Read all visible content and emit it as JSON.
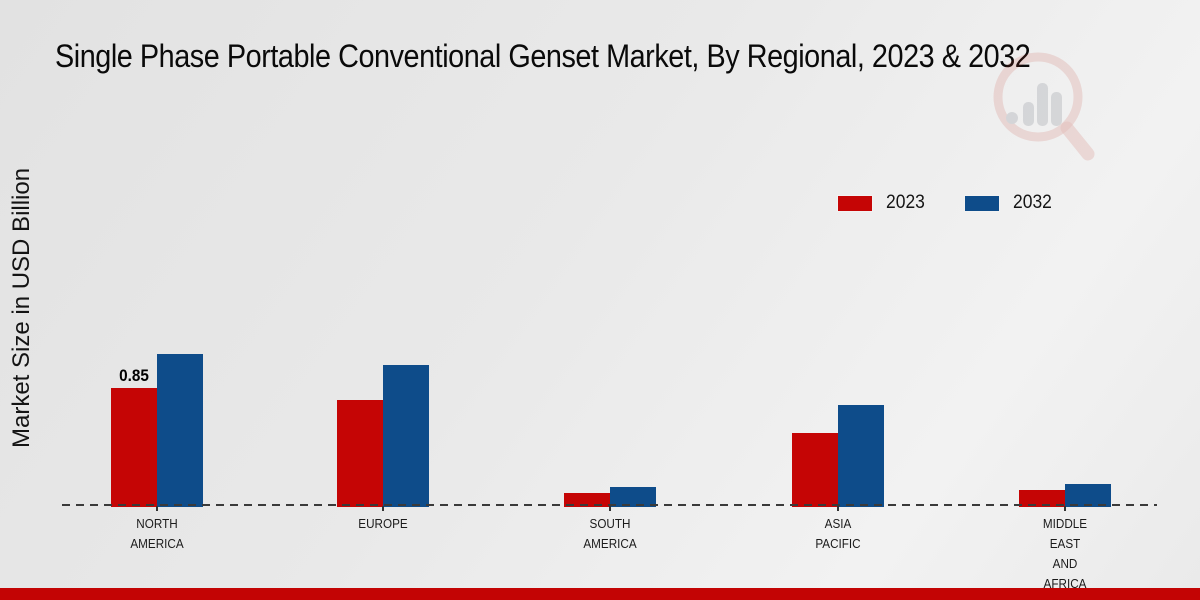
{
  "chart_data": {
    "type": "bar",
    "title": "Single Phase Portable Conventional Genset Market, By Regional, 2023 & 2032",
    "ylabel": "Market Size in USD Billion",
    "unit": "USD Billion",
    "categories": [
      "NORTH AMERICA",
      "EUROPE",
      "SOUTH AMERICA",
      "ASIA PACIFIC",
      "MIDDLE EAST AND AFRICA"
    ],
    "series": [
      {
        "name": "2023",
        "color": "#c50505",
        "values": [
          0.85,
          0.76,
          0.09,
          0.52,
          0.11
        ]
      },
      {
        "name": "2032",
        "color": "#0e4c8a",
        "values": [
          1.1,
          1.02,
          0.13,
          0.73,
          0.15
        ]
      }
    ],
    "data_labels": [
      {
        "series": "2023",
        "category": "NORTH AMERICA",
        "value": "0.85"
      }
    ],
    "ylim": [
      0,
      1.45
    ],
    "grid": false,
    "legend_position": "upper-right",
    "baseline_style": "dashed",
    "axis_ticks_visible": false
  },
  "footer": {
    "band_color": "#c30404"
  },
  "watermark": {
    "icon": "magnifier-bar-chart-logo"
  }
}
